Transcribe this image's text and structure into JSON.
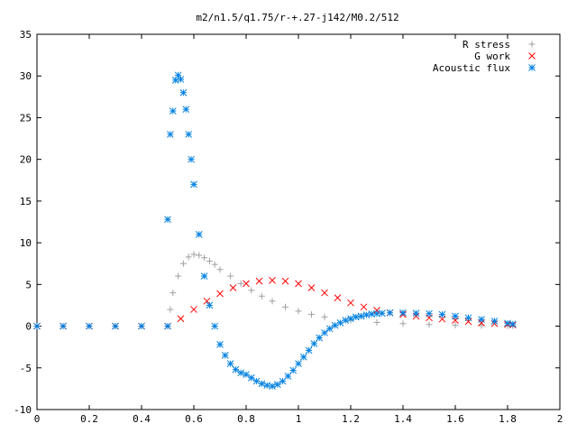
{
  "chart_data": {
    "type": "scatter",
    "title": "m2/n1.5/q1.75/r-+.27-j142/M0.2/512",
    "xlabel": "",
    "ylabel": "",
    "xlim": [
      0,
      2
    ],
    "ylim": [
      -10,
      35
    ],
    "xticks": [
      "0",
      "0.2",
      "0.4",
      "0.6",
      "0.8",
      "1",
      "1.2",
      "1.4",
      "1.6",
      "1.8",
      "2"
    ],
    "yticks": [
      "-10",
      "-5",
      "0",
      "5",
      "10",
      "15",
      "20",
      "25",
      "30",
      "35"
    ],
    "legend_position": "top-right",
    "grid": false,
    "series": [
      {
        "name": "R stress",
        "marker": "plus",
        "color": "#a0a0a0",
        "x": [
          0.0,
          0.1,
          0.2,
          0.3,
          0.4,
          0.5,
          0.51,
          0.52,
          0.54,
          0.56,
          0.58,
          0.6,
          0.62,
          0.64,
          0.66,
          0.68,
          0.7,
          0.74,
          0.78,
          0.82,
          0.86,
          0.9,
          0.95,
          1.0,
          1.05,
          1.1,
          1.2,
          1.3,
          1.4,
          1.5,
          1.6,
          1.7,
          1.8,
          1.82
        ],
        "y": [
          0,
          0,
          0,
          0,
          0,
          0,
          2,
          4,
          6,
          7.5,
          8.3,
          8.6,
          8.5,
          8.2,
          7.8,
          7.4,
          6.8,
          6.0,
          5.1,
          4.3,
          3.6,
          3.0,
          2.3,
          1.8,
          1.4,
          1.1,
          0.7,
          0.45,
          0.3,
          0.2,
          0.12,
          0.08,
          0.05,
          0.04
        ]
      },
      {
        "name": "G work",
        "marker": "cross",
        "color": "#ff0000",
        "x": [
          0.0,
          0.1,
          0.2,
          0.3,
          0.4,
          0.5,
          0.55,
          0.6,
          0.65,
          0.7,
          0.75,
          0.8,
          0.85,
          0.9,
          0.95,
          1.0,
          1.05,
          1.1,
          1.15,
          1.2,
          1.25,
          1.3,
          1.35,
          1.4,
          1.45,
          1.5,
          1.55,
          1.6,
          1.65,
          1.7,
          1.75,
          1.8,
          1.82
        ],
        "y": [
          0,
          0,
          0,
          0,
          0,
          0,
          0.9,
          2.0,
          3.0,
          3.9,
          4.6,
          5.1,
          5.4,
          5.5,
          5.4,
          5.1,
          4.6,
          4.0,
          3.4,
          2.8,
          2.3,
          1.9,
          1.6,
          1.4,
          1.2,
          1.0,
          0.85,
          0.7,
          0.55,
          0.4,
          0.3,
          0.2,
          0.15
        ]
      },
      {
        "name": "Acoustic flux",
        "marker": "star",
        "color": "#0080e0",
        "x": [
          0.0,
          0.1,
          0.2,
          0.3,
          0.4,
          0.5,
          0.5,
          0.51,
          0.52,
          0.53,
          0.54,
          0.55,
          0.56,
          0.57,
          0.58,
          0.59,
          0.6,
          0.62,
          0.64,
          0.66,
          0.68,
          0.7,
          0.72,
          0.74,
          0.76,
          0.78,
          0.8,
          0.82,
          0.84,
          0.86,
          0.88,
          0.9,
          0.92,
          0.94,
          0.96,
          0.98,
          1.0,
          1.02,
          1.04,
          1.06,
          1.08,
          1.1,
          1.12,
          1.14,
          1.16,
          1.18,
          1.2,
          1.22,
          1.24,
          1.26,
          1.28,
          1.3,
          1.32,
          1.35,
          1.4,
          1.45,
          1.5,
          1.55,
          1.6,
          1.65,
          1.7,
          1.75,
          1.8,
          1.82
        ],
        "y": [
          0,
          0,
          0,
          0,
          0,
          0,
          12.8,
          23,
          25.8,
          29.5,
          30.1,
          29.6,
          28,
          26,
          23,
          20,
          17,
          11,
          6,
          2.5,
          0,
          -2.2,
          -3.5,
          -4.5,
          -5.2,
          -5.6,
          -5.8,
          -6.2,
          -6.6,
          -6.9,
          -7.1,
          -7.2,
          -7.0,
          -6.6,
          -6.0,
          -5.3,
          -4.5,
          -3.7,
          -2.9,
          -2.1,
          -1.4,
          -0.8,
          -0.3,
          0.1,
          0.4,
          0.7,
          0.9,
          1.1,
          1.2,
          1.35,
          1.45,
          1.5,
          1.55,
          1.6,
          1.6,
          1.55,
          1.5,
          1.4,
          1.2,
          1.0,
          0.8,
          0.6,
          0.35,
          0.25
        ]
      }
    ]
  }
}
